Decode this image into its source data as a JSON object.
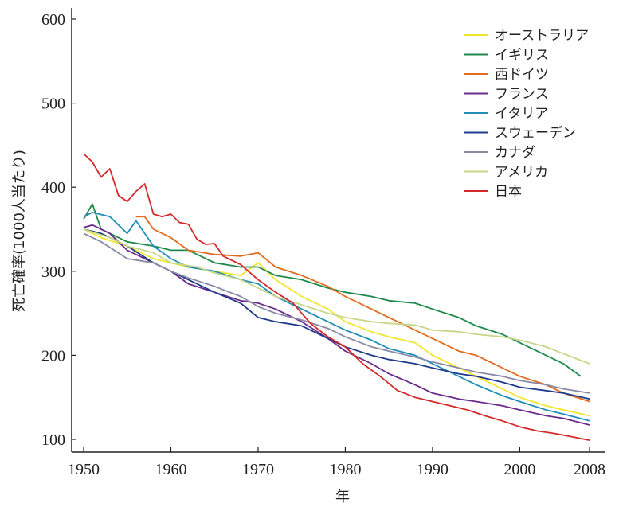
{
  "chart_data": {
    "type": "line",
    "title": "",
    "xlabel": "年",
    "ylabel": "死亡確率(1000人当たり)",
    "xlim": [
      1950,
      2008
    ],
    "ylim": [
      100,
      600
    ],
    "x_ticks": [
      1950,
      1960,
      1970,
      1980,
      1990,
      2000,
      2008
    ],
    "y_ticks": [
      100,
      200,
      300,
      400,
      500,
      600
    ],
    "legend_position": "top-right",
    "grid": false,
    "series": [
      {
        "name": "オーストラリア",
        "color": "#f2e52c",
        "points": [
          [
            1950,
            350
          ],
          [
            1952,
            340
          ],
          [
            1955,
            330
          ],
          [
            1958,
            315
          ],
          [
            1960,
            310
          ],
          [
            1962,
            305
          ],
          [
            1965,
            300
          ],
          [
            1968,
            295
          ],
          [
            1970,
            310
          ],
          [
            1972,
            290
          ],
          [
            1975,
            270
          ],
          [
            1978,
            255
          ],
          [
            1980,
            240
          ],
          [
            1983,
            228
          ],
          [
            1985,
            222
          ],
          [
            1988,
            215
          ],
          [
            1990,
            200
          ],
          [
            1993,
            185
          ],
          [
            1995,
            175
          ],
          [
            1998,
            160
          ],
          [
            2000,
            150
          ],
          [
            2003,
            140
          ],
          [
            2005,
            135
          ],
          [
            2008,
            128
          ]
        ]
      },
      {
        "name": "イギリス",
        "color": "#1e8a4a",
        "points": [
          [
            1950,
            362
          ],
          [
            1951,
            380
          ],
          [
            1952,
            350
          ],
          [
            1955,
            335
          ],
          [
            1958,
            330
          ],
          [
            1960,
            325
          ],
          [
            1962,
            325
          ],
          [
            1965,
            310
          ],
          [
            1968,
            305
          ],
          [
            1970,
            305
          ],
          [
            1972,
            295
          ],
          [
            1975,
            290
          ],
          [
            1978,
            280
          ],
          [
            1980,
            275
          ],
          [
            1983,
            270
          ],
          [
            1985,
            265
          ],
          [
            1988,
            262
          ],
          [
            1990,
            255
          ],
          [
            1993,
            245
          ],
          [
            1995,
            235
          ],
          [
            1998,
            225
          ],
          [
            2000,
            215
          ],
          [
            2003,
            200
          ],
          [
            2005,
            190
          ],
          [
            2007,
            175
          ]
        ]
      },
      {
        "name": "西ドイツ",
        "color": "#e26c1e",
        "points": [
          [
            1956,
            365
          ],
          [
            1957,
            365
          ],
          [
            1958,
            350
          ],
          [
            1960,
            340
          ],
          [
            1962,
            325
          ],
          [
            1965,
            320
          ],
          [
            1968,
            318
          ],
          [
            1970,
            322
          ],
          [
            1972,
            305
          ],
          [
            1975,
            295
          ],
          [
            1978,
            282
          ],
          [
            1980,
            270
          ],
          [
            1983,
            255
          ],
          [
            1985,
            245
          ],
          [
            1988,
            230
          ],
          [
            1990,
            220
          ],
          [
            1993,
            205
          ],
          [
            1995,
            200
          ],
          [
            1998,
            185
          ],
          [
            2000,
            175
          ],
          [
            2003,
            165
          ],
          [
            2005,
            155
          ],
          [
            2008,
            145
          ]
        ]
      },
      {
        "name": "フランス",
        "color": "#6b2c8a",
        "points": [
          [
            1950,
            352
          ],
          [
            1951,
            355
          ],
          [
            1953,
            345
          ],
          [
            1955,
            325
          ],
          [
            1958,
            310
          ],
          [
            1960,
            300
          ],
          [
            1962,
            285
          ],
          [
            1965,
            275
          ],
          [
            1968,
            265
          ],
          [
            1970,
            262
          ],
          [
            1972,
            255
          ],
          [
            1975,
            240
          ],
          [
            1978,
            220
          ],
          [
            1980,
            205
          ],
          [
            1983,
            190
          ],
          [
            1985,
            178
          ],
          [
            1988,
            165
          ],
          [
            1990,
            155
          ],
          [
            1993,
            148
          ],
          [
            1995,
            145
          ],
          [
            1998,
            140
          ],
          [
            2000,
            135
          ],
          [
            2003,
            128
          ],
          [
            2005,
            125
          ],
          [
            2008,
            117
          ]
        ]
      },
      {
        "name": "イタリア",
        "color": "#1f8fb8",
        "points": [
          [
            1950,
            365
          ],
          [
            1951,
            370
          ],
          [
            1953,
            365
          ],
          [
            1955,
            345
          ],
          [
            1956,
            360
          ],
          [
            1958,
            330
          ],
          [
            1960,
            315
          ],
          [
            1962,
            305
          ],
          [
            1965,
            300
          ],
          [
            1968,
            290
          ],
          [
            1970,
            285
          ],
          [
            1972,
            270
          ],
          [
            1975,
            255
          ],
          [
            1978,
            240
          ],
          [
            1980,
            230
          ],
          [
            1983,
            218
          ],
          [
            1985,
            208
          ],
          [
            1988,
            200
          ],
          [
            1990,
            190
          ],
          [
            1993,
            175
          ],
          [
            1995,
            165
          ],
          [
            1998,
            152
          ],
          [
            2000,
            145
          ],
          [
            2003,
            135
          ],
          [
            2005,
            130
          ],
          [
            2008,
            122
          ]
        ]
      },
      {
        "name": "スウェーデン",
        "color": "#1f3b8a",
        "points": [
          [
            1950,
            350
          ],
          [
            1952,
            345
          ],
          [
            1955,
            330
          ],
          [
            1958,
            310
          ],
          [
            1960,
            300
          ],
          [
            1962,
            290
          ],
          [
            1965,
            275
          ],
          [
            1968,
            262
          ],
          [
            1970,
            245
          ],
          [
            1972,
            240
          ],
          [
            1975,
            235
          ],
          [
            1978,
            220
          ],
          [
            1980,
            210
          ],
          [
            1983,
            200
          ],
          [
            1985,
            195
          ],
          [
            1988,
            190
          ],
          [
            1990,
            185
          ],
          [
            1993,
            178
          ],
          [
            1995,
            175
          ],
          [
            1998,
            168
          ],
          [
            2000,
            162
          ],
          [
            2003,
            158
          ],
          [
            2005,
            155
          ],
          [
            2008,
            148
          ]
        ]
      },
      {
        "name": "カナダ",
        "color": "#8a8aa6",
        "points": [
          [
            1950,
            345
          ],
          [
            1952,
            335
          ],
          [
            1955,
            315
          ],
          [
            1958,
            310
          ],
          [
            1960,
            300
          ],
          [
            1962,
            292
          ],
          [
            1965,
            282
          ],
          [
            1968,
            270
          ],
          [
            1970,
            258
          ],
          [
            1972,
            250
          ],
          [
            1975,
            242
          ],
          [
            1978,
            232
          ],
          [
            1980,
            222
          ],
          [
            1983,
            210
          ],
          [
            1985,
            205
          ],
          [
            1988,
            198
          ],
          [
            1990,
            192
          ],
          [
            1993,
            185
          ],
          [
            1995,
            180
          ],
          [
            1998,
            175
          ],
          [
            2000,
            170
          ],
          [
            2003,
            165
          ],
          [
            2005,
            160
          ],
          [
            2008,
            155
          ]
        ]
      },
      {
        "name": "アメリカ",
        "color": "#c8d68a",
        "points": [
          [
            1950,
            350
          ],
          [
            1953,
            340
          ],
          [
            1955,
            330
          ],
          [
            1958,
            322
          ],
          [
            1960,
            310
          ],
          [
            1963,
            305
          ],
          [
            1965,
            298
          ],
          [
            1968,
            290
          ],
          [
            1970,
            280
          ],
          [
            1972,
            270
          ],
          [
            1975,
            260
          ],
          [
            1978,
            250
          ],
          [
            1980,
            245
          ],
          [
            1983,
            240
          ],
          [
            1985,
            238
          ],
          [
            1988,
            236
          ],
          [
            1990,
            230
          ],
          [
            1993,
            228
          ],
          [
            1995,
            225
          ],
          [
            1998,
            222
          ],
          [
            2000,
            218
          ],
          [
            2003,
            210
          ],
          [
            2005,
            202
          ],
          [
            2008,
            190
          ]
        ]
      },
      {
        "name": "日本",
        "color": "#d42a2a",
        "points": [
          [
            1950,
            440
          ],
          [
            1951,
            430
          ],
          [
            1952,
            412
          ],
          [
            1953,
            422
          ],
          [
            1954,
            390
          ],
          [
            1955,
            383
          ],
          [
            1956,
            395
          ],
          [
            1957,
            404
          ],
          [
            1958,
            368
          ],
          [
            1959,
            365
          ],
          [
            1960,
            368
          ],
          [
            1961,
            358
          ],
          [
            1962,
            356
          ],
          [
            1963,
            338
          ],
          [
            1964,
            332
          ],
          [
            1965,
            333
          ],
          [
            1966,
            318
          ],
          [
            1968,
            308
          ],
          [
            1970,
            290
          ],
          [
            1972,
            275
          ],
          [
            1974,
            262
          ],
          [
            1976,
            238
          ],
          [
            1978,
            222
          ],
          [
            1980,
            210
          ],
          [
            1982,
            190
          ],
          [
            1984,
            175
          ],
          [
            1986,
            158
          ],
          [
            1988,
            150
          ],
          [
            1990,
            145
          ],
          [
            1992,
            140
          ],
          [
            1994,
            135
          ],
          [
            1996,
            128
          ],
          [
            1998,
            122
          ],
          [
            2000,
            115
          ],
          [
            2002,
            110
          ],
          [
            2004,
            107
          ],
          [
            2006,
            103
          ],
          [
            2008,
            99
          ]
        ]
      }
    ]
  }
}
